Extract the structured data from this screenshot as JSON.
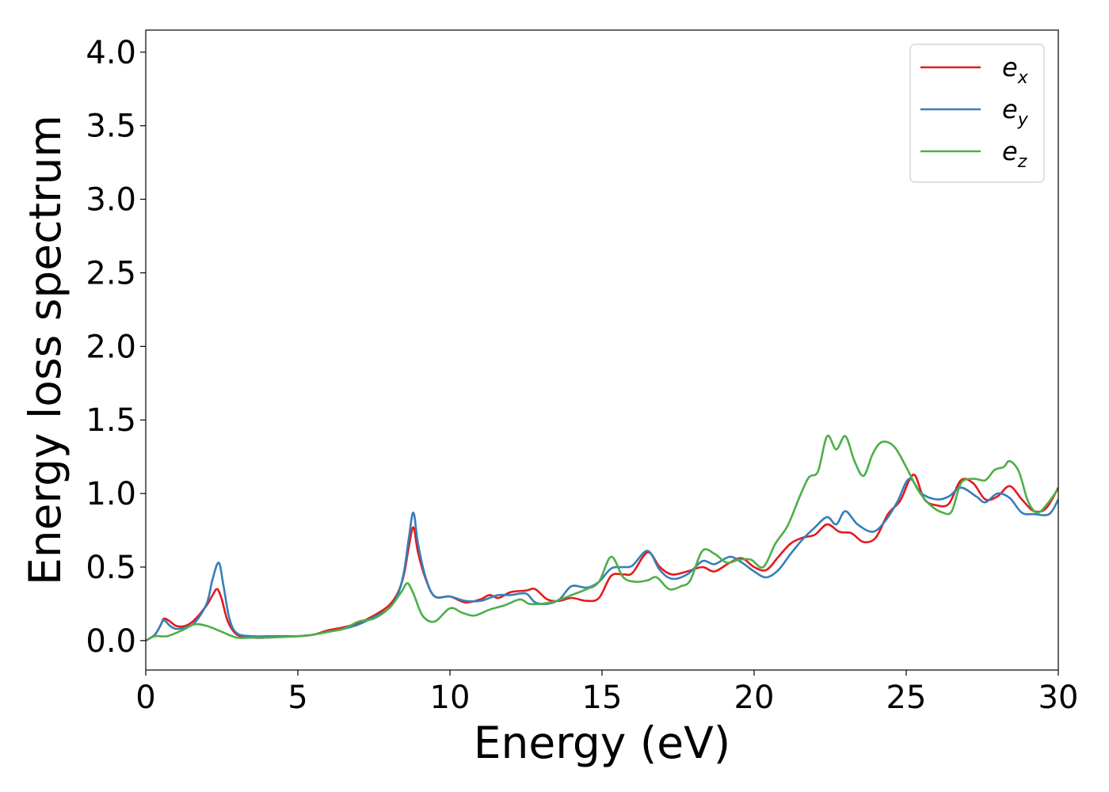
{
  "chart_data": {
    "type": "line",
    "xlabel": "Energy (eV)",
    "ylabel": "Energy loss spectrum",
    "xlim": [
      0,
      30
    ],
    "ylim": [
      -0.2,
      4.15
    ],
    "x_ticks": [
      "0",
      "5",
      "10",
      "15",
      "20",
      "25",
      "30"
    ],
    "y_ticks": [
      "0.0",
      "0.5",
      "1.0",
      "1.5",
      "2.0",
      "2.5",
      "3.0",
      "3.5",
      "4.0"
    ],
    "grid": false,
    "legend_position": "top-right",
    "series": [
      {
        "name": "e",
        "subscript": "x",
        "color": "#e41a1c",
        "points": [
          [
            0,
            0.0
          ],
          [
            0.3,
            0.04
          ],
          [
            0.5,
            0.11
          ],
          [
            0.6,
            0.15
          ],
          [
            0.8,
            0.13
          ],
          [
            1.0,
            0.1
          ],
          [
            1.3,
            0.1
          ],
          [
            1.6,
            0.14
          ],
          [
            2.0,
            0.24
          ],
          [
            2.2,
            0.31
          ],
          [
            2.35,
            0.35
          ],
          [
            2.5,
            0.28
          ],
          [
            2.7,
            0.13
          ],
          [
            3.0,
            0.04
          ],
          [
            3.5,
            0.02
          ],
          [
            4.0,
            0.02
          ],
          [
            4.5,
            0.03
          ],
          [
            5.0,
            0.03
          ],
          [
            5.5,
            0.04
          ],
          [
            6.0,
            0.07
          ],
          [
            6.5,
            0.09
          ],
          [
            7.0,
            0.12
          ],
          [
            7.5,
            0.17
          ],
          [
            8.0,
            0.24
          ],
          [
            8.3,
            0.33
          ],
          [
            8.5,
            0.46
          ],
          [
            8.65,
            0.64
          ],
          [
            8.8,
            0.77
          ],
          [
            8.95,
            0.6
          ],
          [
            9.2,
            0.42
          ],
          [
            9.5,
            0.3
          ],
          [
            10.0,
            0.3
          ],
          [
            10.5,
            0.26
          ],
          [
            11.0,
            0.28
          ],
          [
            11.3,
            0.31
          ],
          [
            11.6,
            0.29
          ],
          [
            12.0,
            0.33
          ],
          [
            12.5,
            0.34
          ],
          [
            12.8,
            0.35
          ],
          [
            13.2,
            0.28
          ],
          [
            13.6,
            0.27
          ],
          [
            14.0,
            0.29
          ],
          [
            14.5,
            0.27
          ],
          [
            14.9,
            0.29
          ],
          [
            15.3,
            0.44
          ],
          [
            15.7,
            0.45
          ],
          [
            16.0,
            0.46
          ],
          [
            16.5,
            0.6
          ],
          [
            16.9,
            0.5
          ],
          [
            17.3,
            0.45
          ],
          [
            17.8,
            0.47
          ],
          [
            18.3,
            0.5
          ],
          [
            18.7,
            0.47
          ],
          [
            19.2,
            0.53
          ],
          [
            19.6,
            0.56
          ],
          [
            20.0,
            0.5
          ],
          [
            20.4,
            0.48
          ],
          [
            20.8,
            0.57
          ],
          [
            21.2,
            0.66
          ],
          [
            21.6,
            0.7
          ],
          [
            22.0,
            0.72
          ],
          [
            22.4,
            0.79
          ],
          [
            22.8,
            0.74
          ],
          [
            23.2,
            0.73
          ],
          [
            23.6,
            0.67
          ],
          [
            24.0,
            0.7
          ],
          [
            24.4,
            0.86
          ],
          [
            24.8,
            0.95
          ],
          [
            25.1,
            1.09
          ],
          [
            25.3,
            1.12
          ],
          [
            25.6,
            0.96
          ],
          [
            26.0,
            0.92
          ],
          [
            26.4,
            0.93
          ],
          [
            26.8,
            1.09
          ],
          [
            27.2,
            1.07
          ],
          [
            27.6,
            0.96
          ],
          [
            28.0,
            0.98
          ],
          [
            28.4,
            1.05
          ],
          [
            28.8,
            0.96
          ],
          [
            29.2,
            0.88
          ],
          [
            29.6,
            0.9
          ],
          [
            30.0,
            1.04
          ]
        ]
      },
      {
        "name": "e",
        "subscript": "y",
        "color": "#377eb8",
        "points": [
          [
            0,
            0.0
          ],
          [
            0.3,
            0.04
          ],
          [
            0.5,
            0.11
          ],
          [
            0.6,
            0.14
          ],
          [
            0.8,
            0.1
          ],
          [
            1.0,
            0.08
          ],
          [
            1.3,
            0.09
          ],
          [
            1.6,
            0.12
          ],
          [
            2.0,
            0.25
          ],
          [
            2.2,
            0.42
          ],
          [
            2.4,
            0.53
          ],
          [
            2.55,
            0.38
          ],
          [
            2.75,
            0.15
          ],
          [
            3.0,
            0.05
          ],
          [
            3.5,
            0.03
          ],
          [
            4.0,
            0.03
          ],
          [
            4.5,
            0.03
          ],
          [
            5.0,
            0.03
          ],
          [
            5.5,
            0.04
          ],
          [
            6.0,
            0.06
          ],
          [
            6.5,
            0.08
          ],
          [
            7.0,
            0.11
          ],
          [
            7.5,
            0.16
          ],
          [
            8.0,
            0.22
          ],
          [
            8.3,
            0.32
          ],
          [
            8.5,
            0.48
          ],
          [
            8.65,
            0.7
          ],
          [
            8.8,
            0.87
          ],
          [
            8.95,
            0.66
          ],
          [
            9.2,
            0.43
          ],
          [
            9.5,
            0.3
          ],
          [
            10.0,
            0.3
          ],
          [
            10.5,
            0.27
          ],
          [
            11.0,
            0.27
          ],
          [
            11.3,
            0.29
          ],
          [
            11.6,
            0.31
          ],
          [
            12.0,
            0.31
          ],
          [
            12.5,
            0.32
          ],
          [
            12.8,
            0.26
          ],
          [
            13.2,
            0.25
          ],
          [
            13.6,
            0.28
          ],
          [
            14.0,
            0.37
          ],
          [
            14.5,
            0.36
          ],
          [
            14.9,
            0.4
          ],
          [
            15.3,
            0.49
          ],
          [
            15.7,
            0.5
          ],
          [
            16.0,
            0.51
          ],
          [
            16.5,
            0.61
          ],
          [
            16.9,
            0.48
          ],
          [
            17.3,
            0.42
          ],
          [
            17.8,
            0.45
          ],
          [
            18.3,
            0.54
          ],
          [
            18.7,
            0.52
          ],
          [
            19.2,
            0.57
          ],
          [
            19.6,
            0.53
          ],
          [
            20.0,
            0.47
          ],
          [
            20.4,
            0.43
          ],
          [
            20.8,
            0.48
          ],
          [
            21.2,
            0.59
          ],
          [
            21.6,
            0.69
          ],
          [
            22.0,
            0.77
          ],
          [
            22.4,
            0.84
          ],
          [
            22.7,
            0.79
          ],
          [
            23.0,
            0.88
          ],
          [
            23.4,
            0.79
          ],
          [
            23.9,
            0.74
          ],
          [
            24.3,
            0.81
          ],
          [
            24.7,
            0.94
          ],
          [
            25.1,
            1.1
          ],
          [
            25.5,
            1.0
          ],
          [
            26.0,
            0.96
          ],
          [
            26.4,
            0.98
          ],
          [
            26.8,
            1.04
          ],
          [
            27.3,
            0.98
          ],
          [
            27.6,
            0.94
          ],
          [
            28.0,
            1.0
          ],
          [
            28.4,
            0.97
          ],
          [
            28.8,
            0.87
          ],
          [
            29.2,
            0.86
          ],
          [
            29.7,
            0.86
          ],
          [
            30.0,
            0.96
          ]
        ]
      },
      {
        "name": "e",
        "subscript": "z",
        "color": "#4daf4a",
        "points": [
          [
            0,
            0.0
          ],
          [
            0.3,
            0.03
          ],
          [
            0.7,
            0.03
          ],
          [
            1.2,
            0.07
          ],
          [
            1.6,
            0.11
          ],
          [
            2.0,
            0.1
          ],
          [
            2.5,
            0.06
          ],
          [
            3.0,
            0.02
          ],
          [
            3.5,
            0.02
          ],
          [
            4.0,
            0.02
          ],
          [
            5.0,
            0.03
          ],
          [
            5.5,
            0.04
          ],
          [
            6.0,
            0.06
          ],
          [
            6.5,
            0.08
          ],
          [
            7.0,
            0.13
          ],
          [
            7.5,
            0.15
          ],
          [
            8.0,
            0.22
          ],
          [
            8.4,
            0.33
          ],
          [
            8.6,
            0.39
          ],
          [
            8.8,
            0.32
          ],
          [
            9.1,
            0.17
          ],
          [
            9.5,
            0.13
          ],
          [
            10.0,
            0.22
          ],
          [
            10.4,
            0.19
          ],
          [
            10.8,
            0.17
          ],
          [
            11.3,
            0.21
          ],
          [
            11.8,
            0.24
          ],
          [
            12.3,
            0.28
          ],
          [
            12.6,
            0.25
          ],
          [
            13.0,
            0.25
          ],
          [
            13.5,
            0.27
          ],
          [
            14.0,
            0.31
          ],
          [
            14.5,
            0.35
          ],
          [
            14.9,
            0.4
          ],
          [
            15.3,
            0.57
          ],
          [
            15.7,
            0.43
          ],
          [
            16.1,
            0.4
          ],
          [
            16.5,
            0.41
          ],
          [
            16.8,
            0.43
          ],
          [
            17.2,
            0.35
          ],
          [
            17.6,
            0.37
          ],
          [
            17.9,
            0.41
          ],
          [
            18.3,
            0.61
          ],
          [
            18.7,
            0.59
          ],
          [
            19.1,
            0.53
          ],
          [
            19.5,
            0.55
          ],
          [
            19.9,
            0.55
          ],
          [
            20.3,
            0.5
          ],
          [
            20.7,
            0.66
          ],
          [
            21.1,
            0.78
          ],
          [
            21.5,
            0.98
          ],
          [
            21.8,
            1.11
          ],
          [
            22.1,
            1.15
          ],
          [
            22.4,
            1.39
          ],
          [
            22.7,
            1.3
          ],
          [
            23.0,
            1.39
          ],
          [
            23.3,
            1.22
          ],
          [
            23.6,
            1.12
          ],
          [
            23.9,
            1.27
          ],
          [
            24.2,
            1.35
          ],
          [
            24.6,
            1.32
          ],
          [
            25.0,
            1.18
          ],
          [
            25.4,
            1.02
          ],
          [
            25.8,
            0.92
          ],
          [
            26.2,
            0.87
          ],
          [
            26.5,
            0.88
          ],
          [
            26.8,
            1.07
          ],
          [
            27.2,
            1.1
          ],
          [
            27.6,
            1.09
          ],
          [
            27.9,
            1.16
          ],
          [
            28.2,
            1.18
          ],
          [
            28.4,
            1.22
          ],
          [
            28.7,
            1.15
          ],
          [
            29.0,
            0.95
          ],
          [
            29.3,
            0.87
          ],
          [
            29.6,
            0.92
          ],
          [
            30.0,
            1.03
          ]
        ]
      }
    ]
  }
}
